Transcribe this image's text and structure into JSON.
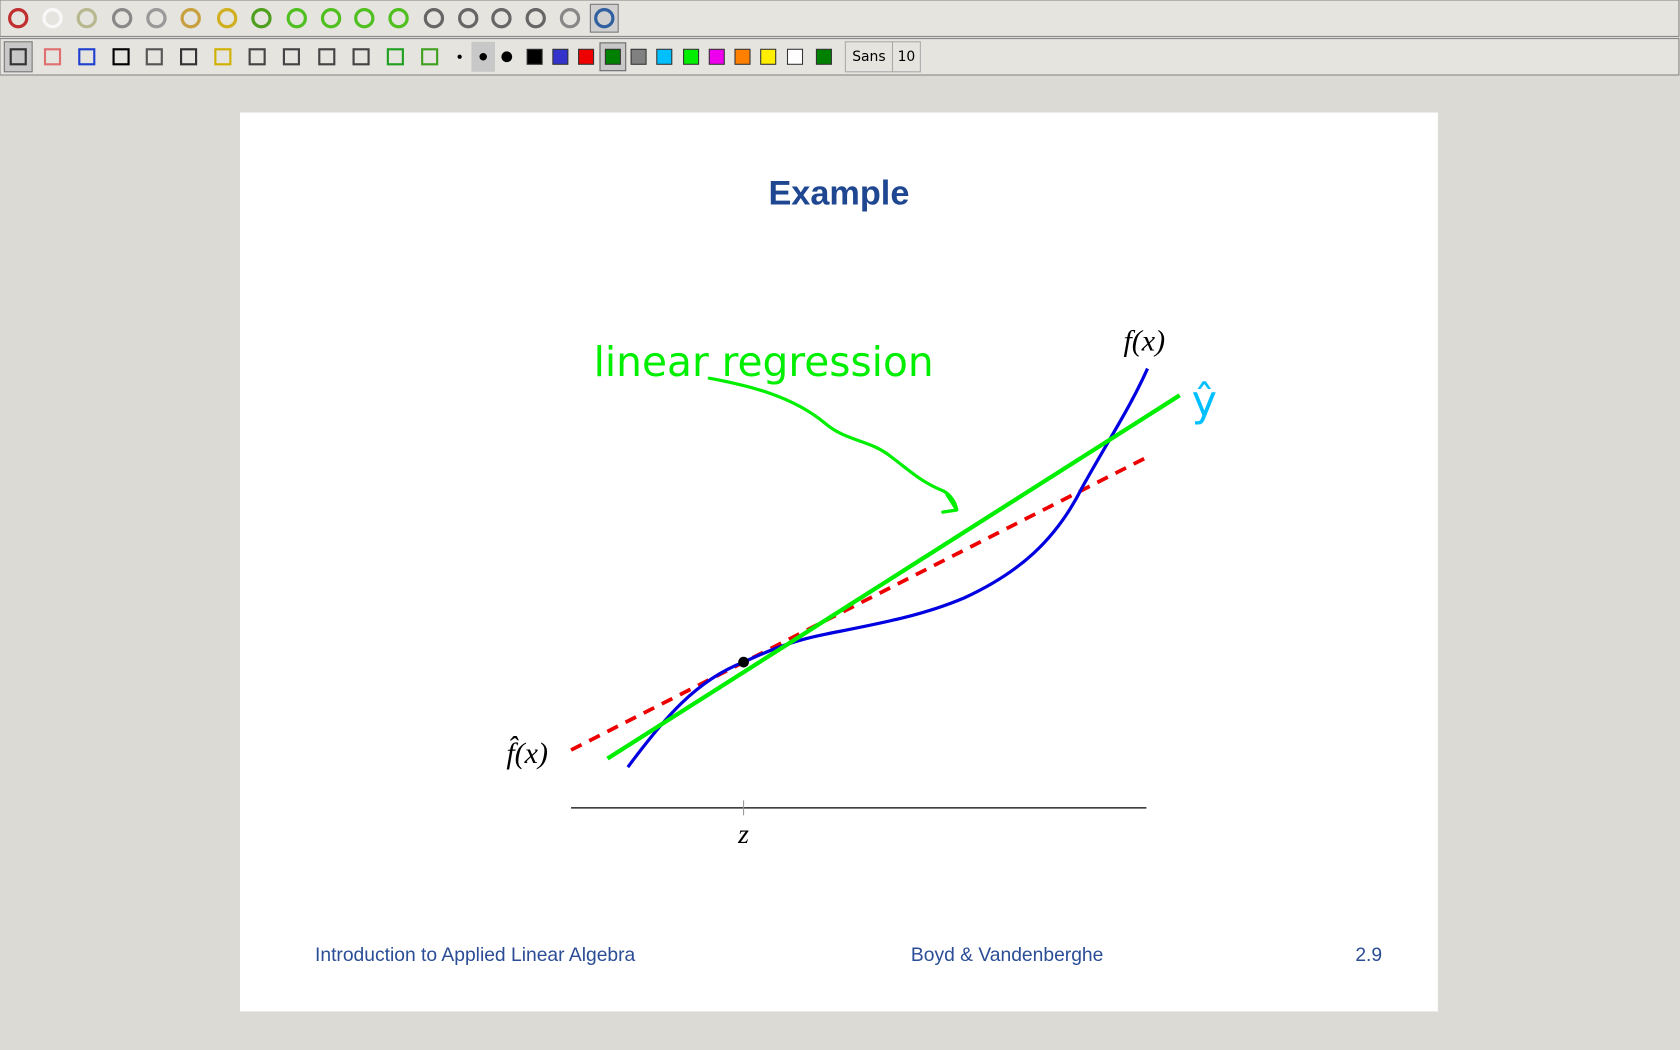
{
  "toolbar": {
    "font_name": "Sans",
    "font_size": "10"
  },
  "slide": {
    "title": "Example",
    "labels": {
      "f": "f(x)",
      "fhat": "f̂(x)",
      "z": "z"
    },
    "footer": {
      "left": "Introduction to Applied Linear Algebra",
      "center": "Boyd & Vandenberghe",
      "right": "2.9"
    }
  },
  "annotations": {
    "text": "linear regression",
    "yhat": "ŷ"
  }
}
